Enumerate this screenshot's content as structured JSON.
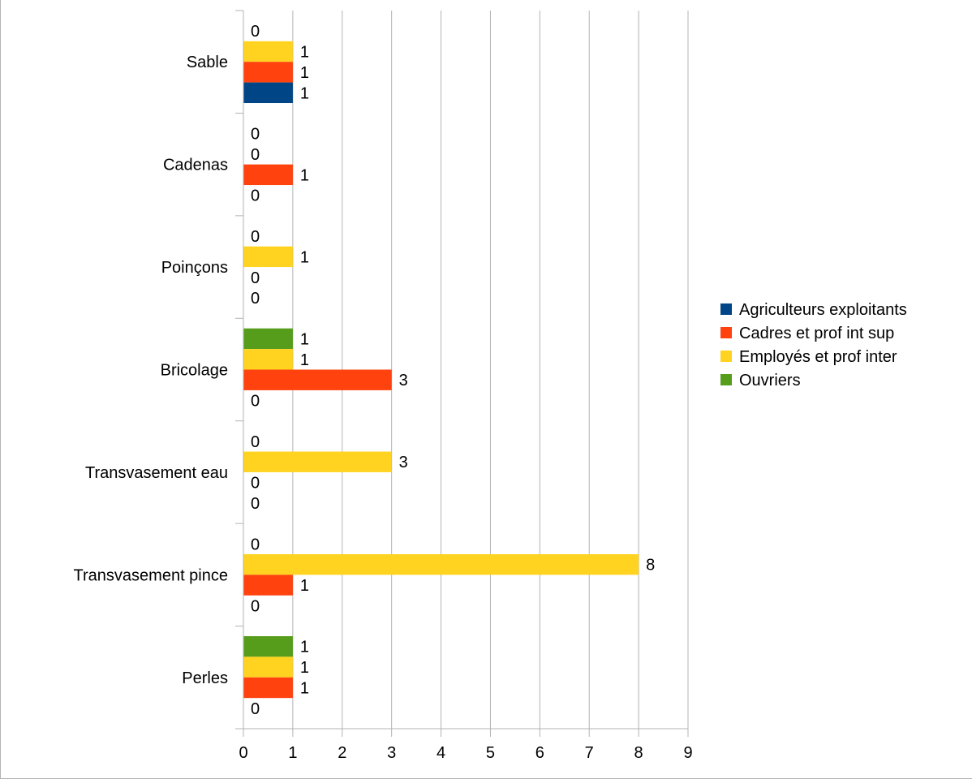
{
  "chart_data": {
    "type": "bar",
    "orientation": "horizontal",
    "categories": [
      "Sable",
      "Cadenas",
      "Poinçons",
      "Bricolage",
      "Transvasement eau",
      "Transvasement pince",
      "Perles"
    ],
    "series": [
      {
        "name": "Agriculteurs exploitants",
        "color": "#004586",
        "values": [
          1,
          0,
          0,
          0,
          0,
          0,
          0
        ]
      },
      {
        "name": "Cadres et prof int sup",
        "color": "#ff420e",
        "values": [
          1,
          1,
          0,
          3,
          0,
          1,
          1
        ]
      },
      {
        "name": "Employés et prof inter",
        "color": "#ffd320",
        "values": [
          1,
          0,
          1,
          1,
          3,
          8,
          1
        ]
      },
      {
        "name": "Ouvriers",
        "color": "#579d1c",
        "values": [
          0,
          0,
          0,
          1,
          0,
          0,
          1
        ]
      }
    ],
    "xticks": [
      "0",
      "1",
      "2",
      "3",
      "4",
      "5",
      "6",
      "7",
      "8",
      "9"
    ],
    "xlim": [
      0,
      9
    ],
    "grid": true,
    "data_labels": true,
    "legend_position": "right",
    "title": "",
    "xlabel": "",
    "ylabel": ""
  }
}
